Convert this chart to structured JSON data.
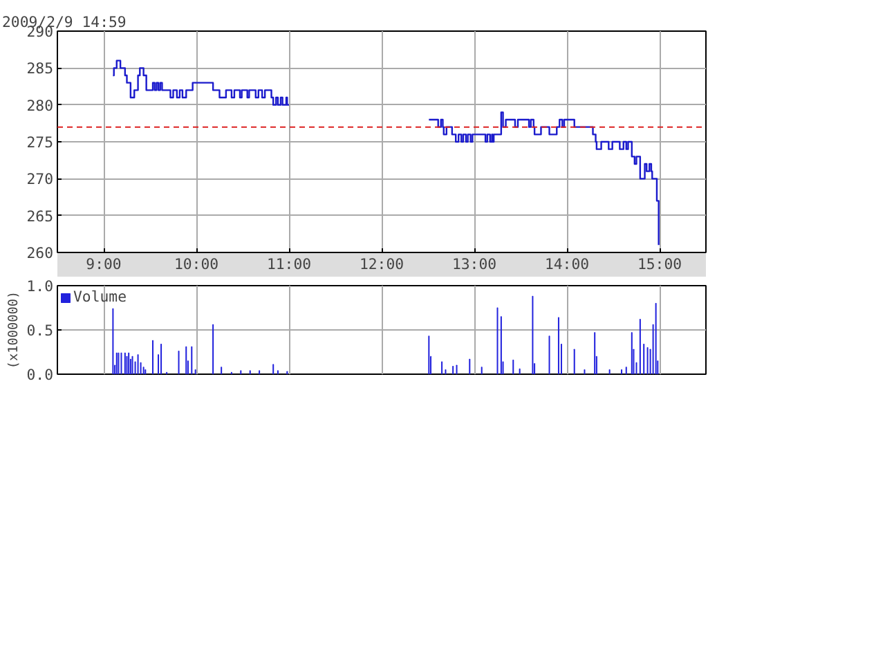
{
  "chart_data": [
    {
      "type": "step",
      "title": "2009/2/9 14:59",
      "xlim": [
        8.5,
        15.5
      ],
      "xticks": [
        {
          "value": 9,
          "label": "9:00"
        },
        {
          "value": 10,
          "label": "10:00"
        },
        {
          "value": 11,
          "label": "11:00"
        },
        {
          "value": 12,
          "label": "12:00"
        },
        {
          "value": 13,
          "label": "13:00"
        },
        {
          "value": 14,
          "label": "14:00"
        },
        {
          "value": 15,
          "label": "15:00"
        }
      ],
      "ylim": [
        260,
        290
      ],
      "yticks": [
        260,
        265,
        270,
        275,
        280,
        285,
        290
      ],
      "grid": true,
      "line_style": "solid",
      "ref_lines": [
        {
          "axis": "y",
          "value": 277,
          "color": "#dd2222",
          "line_style": "dashed"
        }
      ],
      "series": [
        {
          "color": "#1a1acc",
          "x": [
            9.1,
            9.11,
            9.14,
            9.18,
            9.23,
            9.25,
            9.29,
            9.33,
            9.37,
            9.39,
            9.43,
            9.46,
            9.53,
            9.55,
            9.57,
            9.59,
            9.61,
            9.63,
            9.72,
            9.75,
            9.79,
            9.82,
            9.85,
            9.89,
            9.96,
            10.18,
            10.25,
            10.32,
            10.38,
            10.41,
            10.47,
            10.49,
            10.55,
            10.57,
            10.64,
            10.67,
            10.71,
            10.74,
            10.81,
            10.83,
            10.86,
            10.88,
            10.91,
            10.93,
            10.97,
            10.98,
            11.0,
            11.5,
            12.51,
            12.61,
            12.64,
            12.66,
            12.67,
            12.7,
            12.76,
            12.8,
            12.83,
            12.86,
            12.88,
            12.91,
            12.93,
            12.96,
            12.98,
            13.12,
            13.14,
            13.17,
            13.19,
            13.2,
            13.21,
            13.29,
            13.31,
            13.34,
            13.44,
            13.47,
            13.59,
            13.61,
            13.64,
            13.65,
            13.72,
            13.81,
            13.89,
            13.92,
            13.95,
            13.97,
            14.08,
            14.28,
            14.31,
            14.32,
            14.37,
            14.45,
            14.49,
            14.57,
            14.61,
            14.64,
            14.66,
            14.7,
            14.73,
            14.75,
            14.79,
            14.84,
            14.86,
            14.89,
            14.91,
            14.92,
            14.97,
            14.99
          ],
          "values": [
            284,
            285,
            286,
            285,
            284,
            283,
            281,
            282,
            284,
            285,
            284,
            282,
            283,
            282,
            283,
            282,
            283,
            282,
            281,
            282,
            281,
            282,
            281,
            282,
            283,
            282,
            281,
            282,
            281,
            282,
            281,
            282,
            281,
            282,
            281,
            282,
            281,
            282,
            281,
            280,
            281,
            280,
            281,
            280,
            281,
            280,
            280,
            null,
            278,
            277,
            278,
            277,
            276,
            277,
            276,
            275,
            276,
            275,
            276,
            275,
            276,
            275,
            276,
            275,
            276,
            275,
            276,
            275,
            276,
            279,
            277,
            278,
            277,
            278,
            277,
            278,
            277,
            276,
            277,
            276,
            277,
            278,
            277,
            278,
            277,
            276,
            275,
            274,
            275,
            274,
            275,
            274,
            275,
            274,
            275,
            273,
            272,
            273,
            270,
            272,
            271,
            272,
            271,
            270,
            267,
            261
          ]
        }
      ]
    },
    {
      "type": "bar",
      "ylabel": "(x1000000)",
      "xlim": [
        8.5,
        15.5
      ],
      "tick_labels": "y",
      "xticks": [
        9,
        10,
        11,
        12,
        13,
        14,
        15
      ],
      "ylim": [
        0,
        1
      ],
      "yticks": [
        {
          "value": 0,
          "label": "0.0"
        },
        {
          "value": 0.5,
          "label": "0.5"
        },
        {
          "value": 1,
          "label": "1.0"
        }
      ],
      "grid": true,
      "legend": "top left",
      "series": [
        {
          "name": "Volume",
          "color": "#2222dd",
          "x": [
            9.1,
            9.12,
            9.14,
            9.16,
            9.19,
            9.23,
            9.25,
            9.27,
            9.29,
            9.31,
            9.34,
            9.37,
            9.38,
            9.4,
            9.43,
            9.45,
            9.53,
            9.59,
            9.61,
            9.62,
            9.68,
            9.81,
            9.89,
            9.91,
            9.95,
            9.99,
            10.18,
            10.27,
            10.38,
            10.48,
            10.58,
            10.68,
            10.83,
            10.88,
            10.98,
            12.51,
            12.53,
            12.65,
            12.69,
            12.77,
            12.81,
            12.95,
            13.08,
            13.25,
            13.29,
            13.31,
            13.42,
            13.49,
            13.63,
            13.65,
            13.81,
            13.91,
            13.94,
            14.08,
            14.19,
            14.3,
            14.32,
            14.46,
            14.59,
            14.64,
            14.7,
            14.72,
            14.75,
            14.79,
            14.83,
            14.86,
            14.87,
            14.9,
            14.93,
            14.96,
            14.98
          ],
          "values": [
            0.74,
            0.1,
            0.24,
            0.24,
            0.24,
            0.24,
            0.2,
            0.24,
            0.17,
            0.2,
            0.14,
            0.22,
            null,
            0.13,
            0.08,
            0.05,
            0.38,
            0.22,
            null,
            0.34,
            0.02,
            0.26,
            0.31,
            0.15,
            0.31,
            0.05,
            0.56,
            0.08,
            0.02,
            0.04,
            0.04,
            0.04,
            0.11,
            0.04,
            0.03,
            0.43,
            0.2,
            0.14,
            0.05,
            0.09,
            0.1,
            0.17,
            0.08,
            0.75,
            0.65,
            0.14,
            0.16,
            0.06,
            0.88,
            0.12,
            0.43,
            0.64,
            0.34,
            0.28,
            0.05,
            0.47,
            0.2,
            0.05,
            0.05,
            0.08,
            0.47,
            0.28,
            0.13,
            0.62,
            0.34,
            null,
            0.3,
            0.28,
            0.56,
            0.8,
            0.15
          ]
        }
      ]
    }
  ]
}
